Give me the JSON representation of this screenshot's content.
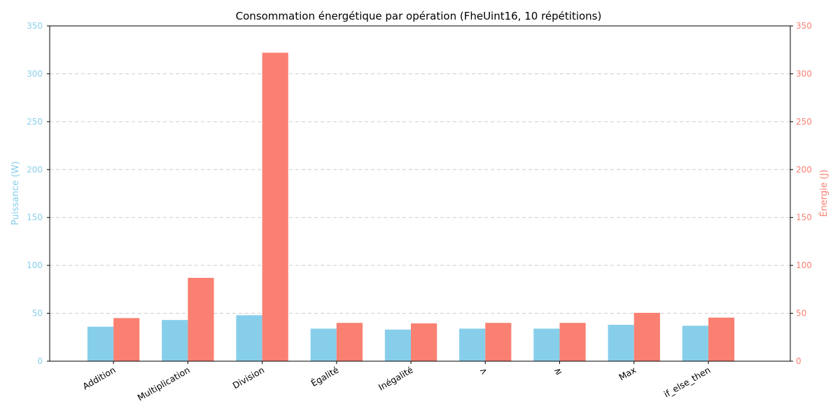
{
  "chart_data": {
    "type": "bar",
    "title": "Consommation énergétique par opération (FheUint16, 10 répétitions)",
    "categories": [
      "Addition",
      "Multiplication",
      "Division",
      "Égalité",
      "Inégalité",
      ">",
      "≥",
      "Max",
      "if_else_then"
    ],
    "series": [
      {
        "name": "Puissance (W)",
        "axis": "left",
        "color": "#87CEEB",
        "values": [
          36,
          43,
          48,
          34,
          33,
          34,
          34,
          38,
          37
        ]
      },
      {
        "name": "Énergie (J)",
        "axis": "right",
        "color": "#FA8072",
        "values": [
          45,
          87,
          322,
          40,
          39.5,
          40,
          40,
          50.5,
          45.5
        ]
      }
    ],
    "ylabel_left": "Puissance (W)",
    "ylabel_right": "Énergie (J)",
    "ylim_left": [
      0,
      350
    ],
    "ylim_right": [
      0,
      350
    ],
    "yticks": [
      "0",
      "50",
      "100",
      "150",
      "200",
      "250",
      "300",
      "350"
    ],
    "grid": "horizontal dashed",
    "legend": "none"
  }
}
